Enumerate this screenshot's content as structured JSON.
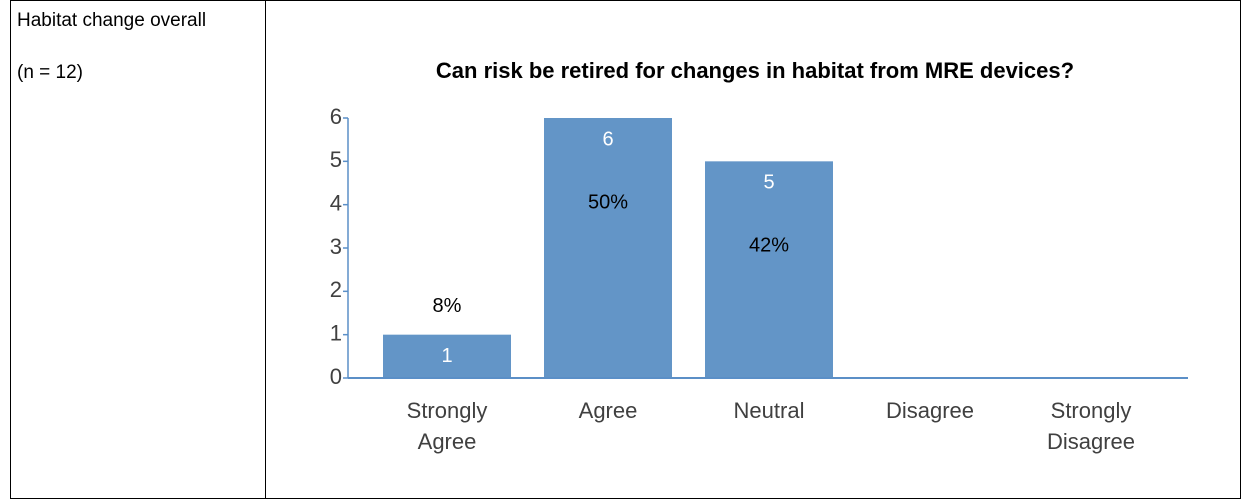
{
  "cell": {
    "heading": "Habitat change overall",
    "note": "(n = 12)"
  },
  "chart_data": {
    "type": "bar",
    "title": "Can risk be retired for changes in habitat from MRE devices?",
    "categories": [
      "Strongly Agree",
      "Agree",
      "Neutral",
      "Disagree",
      "Strongly Disagree"
    ],
    "values": [
      1,
      6,
      5,
      0,
      0
    ],
    "share_labels": [
      "8%",
      "50%",
      "42%",
      null,
      null
    ],
    "color": "#6395c7",
    "ylim": [
      0,
      6
    ],
    "yticks": [
      0,
      1,
      2,
      3,
      4,
      5,
      6
    ]
  }
}
